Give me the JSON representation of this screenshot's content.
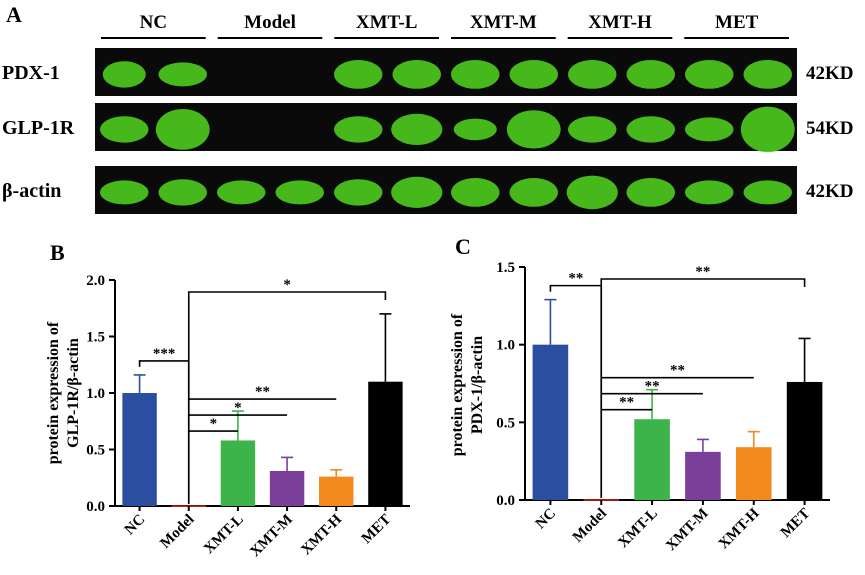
{
  "panel_labels": {
    "a": "A",
    "b": "B",
    "c": "C"
  },
  "blot": {
    "groups": [
      "NC",
      "Model",
      "XMT-L",
      "XMT-M",
      "XMT-H",
      "MET"
    ],
    "rows": [
      {
        "name": "PDX-1",
        "size": "42KD",
        "bands": [
          0.8,
          0.9,
          0,
          0,
          0.9,
          0.9,
          0.9,
          0.9,
          0.9,
          0.9,
          0.9,
          0.9
        ],
        "thick": [
          0.55,
          0.5,
          0,
          0,
          0.6,
          0.6,
          0.6,
          0.6,
          0.6,
          0.6,
          0.6,
          0.6
        ]
      },
      {
        "name": "GLP-1R",
        "size": "54KD",
        "bands": [
          0.9,
          1.0,
          0,
          0,
          0.9,
          0.95,
          0.8,
          1.0,
          0.9,
          0.9,
          0.9,
          1.0
        ],
        "thick": [
          0.55,
          0.85,
          0,
          0,
          0.55,
          0.65,
          0.45,
          0.8,
          0.55,
          0.55,
          0.5,
          0.95
        ]
      },
      {
        "name": "β-actin",
        "size": "42KD",
        "bands": [
          0.9,
          0.9,
          0.9,
          0.9,
          0.9,
          0.95,
          0.9,
          0.9,
          0.95,
          0.9,
          0.9,
          0.9
        ],
        "thick": [
          0.5,
          0.55,
          0.5,
          0.5,
          0.55,
          0.65,
          0.6,
          0.6,
          0.7,
          0.6,
          0.5,
          0.5
        ]
      }
    ]
  },
  "colors": {
    "NC": "#2a4ea0",
    "Model": "#d8251e",
    "XMT-L": "#3cb44a",
    "XMT-M": "#7b3f9a",
    "XMT-H": "#f28a1d",
    "MET": "#000000",
    "band": "#4cc81e",
    "blot_bg": "#0a0a0a"
  },
  "chart_data": [
    {
      "type": "bar",
      "ylabel_line1": "protein expression of",
      "ylabel_line2": "GLP-1R/β-actin",
      "categories": [
        "NC",
        "Model",
        "XMT-L",
        "XMT-M",
        "XMT-H",
        "MET"
      ],
      "values": [
        1.0,
        0.005,
        0.58,
        0.31,
        0.26,
        1.1
      ],
      "errors": [
        0.16,
        0.0,
        0.26,
        0.12,
        0.06,
        0.6
      ],
      "ylim": [
        0,
        2.0
      ],
      "yticks": [
        "0.0",
        "0.5",
        "1.0",
        "1.5",
        "2.0"
      ],
      "significance": [
        {
          "from": 0,
          "to": 1,
          "label": "***"
        },
        {
          "from": 1,
          "to": 2,
          "label": "*"
        },
        {
          "from": 1,
          "to": 3,
          "label": "*"
        },
        {
          "from": 1,
          "to": 4,
          "label": "**"
        },
        {
          "from": 1,
          "to": 5,
          "label": "*"
        }
      ]
    },
    {
      "type": "bar",
      "ylabel_line1": "protein expression of",
      "ylabel_line2": "PDX-1/β-actin",
      "categories": [
        "NC",
        "Model",
        "XMT-L",
        "XMT-M",
        "XMT-H",
        "MET"
      ],
      "values": [
        1.0,
        0.005,
        0.52,
        0.31,
        0.34,
        0.76
      ],
      "errors": [
        0.29,
        0.0,
        0.19,
        0.08,
        0.1,
        0.28
      ],
      "ylim": [
        0,
        1.5
      ],
      "yticks": [
        "0.0",
        "0.5",
        "1.0",
        "1.5"
      ],
      "significance": [
        {
          "from": 0,
          "to": 1,
          "label": "**"
        },
        {
          "from": 1,
          "to": 2,
          "label": "**"
        },
        {
          "from": 1,
          "to": 3,
          "label": "**"
        },
        {
          "from": 1,
          "to": 4,
          "label": "**"
        },
        {
          "from": 1,
          "to": 5,
          "label": "**"
        }
      ]
    }
  ]
}
